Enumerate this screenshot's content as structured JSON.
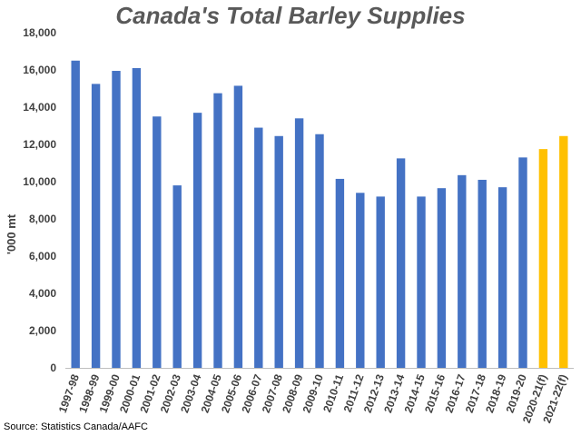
{
  "chart_data": {
    "type": "bar",
    "title": "Canada's Total Barley Supplies",
    "ylabel": "'000 mt",
    "xlabel": "",
    "ylim": [
      0,
      18000
    ],
    "yticks": [
      0,
      2000,
      4000,
      6000,
      8000,
      10000,
      12000,
      14000,
      16000,
      18000
    ],
    "ytick_labels": [
      "0",
      "2,000",
      "4,000",
      "6,000",
      "8,000",
      "10,000",
      "12,000",
      "14,000",
      "16,000",
      "18,000"
    ],
    "grid": false,
    "legend": "none",
    "categories": [
      "1997-98",
      "1998-99",
      "1999-00",
      "2000-01",
      "2001-02",
      "2002-03",
      "2003-04",
      "2004-05",
      "2005-06",
      "2006-07",
      "2007-08",
      "2008-09",
      "2009-10",
      "2010-11",
      "2011-12",
      "2012-13",
      "2013-14",
      "2014-15",
      "2015-16",
      "2016-17",
      "2017-18",
      "2018-19",
      "2019-20",
      "2020-21(f)",
      "2021-22(f)"
    ],
    "values": [
      16500,
      15250,
      15950,
      16100,
      13500,
      9800,
      13700,
      14750,
      15150,
      12900,
      12450,
      13400,
      12550,
      10150,
      9400,
      9200,
      11250,
      9200,
      9650,
      10350,
      10100,
      9700,
      11300,
      11750,
      12450
    ],
    "colors": {
      "actual": "#4472C4",
      "forecast": "#FFC000"
    },
    "forecast_flags": [
      false,
      false,
      false,
      false,
      false,
      false,
      false,
      false,
      false,
      false,
      false,
      false,
      false,
      false,
      false,
      false,
      false,
      false,
      false,
      false,
      false,
      false,
      false,
      true,
      true
    ]
  },
  "source": "Source: Statistics Canada/AAFC"
}
